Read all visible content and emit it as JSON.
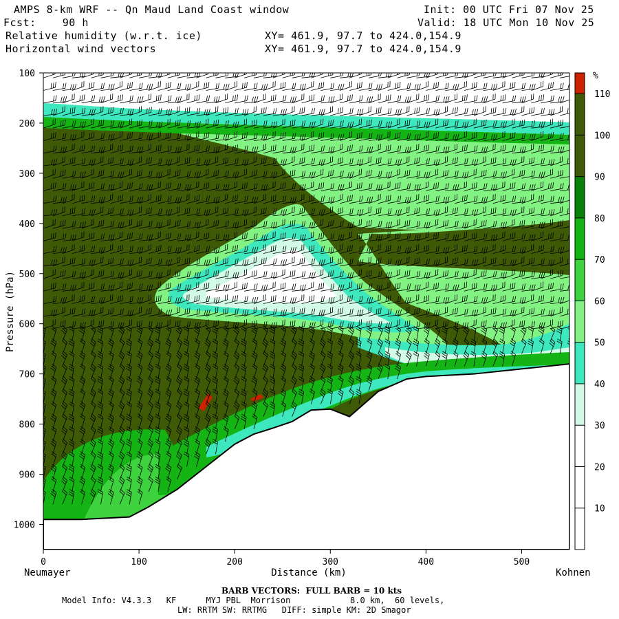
{
  "header": {
    "title": "AMPS 8-km WRF -- Qn Maud Land Coast window",
    "fcst": "Fcst:    90 h",
    "field1": "Relative humidity (w.r.t. ice)",
    "field2": "Horizontal wind vectors",
    "xy1": "XY= 461.9, 97.7 to 424.0,154.9",
    "xy2": "XY= 461.9, 97.7 to 424.0,154.9",
    "init": "Init: 00 UTC Fri 07 Nov 25",
    "valid": "Valid: 18 UTC Mon 10 Nov 25"
  },
  "footer": {
    "barb": "BARB VECTORS:  FULL BARB = 10 kts",
    "model1": "Model Info: V4.3.3   KF      MYJ PBL  Morrison            8.0 km,  60 levels,",
    "model2": "LW: RRTM SW: RRTMG   DIFF: simple KM: 2D Smagor"
  },
  "chart_data": {
    "type": "heatmap",
    "title": "Relative humidity (w.r.t. ice)",
    "xlabel": "Distance (km)",
    "ylabel": "Pressure (hPa)",
    "xlim": [
      0,
      550
    ],
    "ylim": [
      1050,
      100
    ],
    "x_ticks": [
      0,
      100,
      200,
      300,
      400,
      500
    ],
    "y_ticks": [
      100,
      200,
      300,
      400,
      500,
      600,
      700,
      800,
      900,
      1000
    ],
    "x_left_label": "Neumayer",
    "x_right_label": "Kohnen",
    "colorbar": {
      "unit": "%",
      "levels": [
        10,
        20,
        30,
        40,
        50,
        60,
        70,
        80,
        90,
        100,
        110
      ],
      "colors": [
        "#ffffff",
        "#ffffff",
        "#ffffff",
        "#d2fae6",
        "#3ee8be",
        "#82f282",
        "#3ed23e",
        "#14b414",
        "#0a820a",
        "#3f5a06",
        "#3f5a06",
        "#cc2200"
      ]
    },
    "terrain": [
      [
        0,
        990
      ],
      [
        40,
        990
      ],
      [
        90,
        985
      ],
      [
        110,
        965
      ],
      [
        140,
        930
      ],
      [
        170,
        885
      ],
      [
        200,
        840
      ],
      [
        220,
        820
      ],
      [
        240,
        808
      ],
      [
        260,
        795
      ],
      [
        280,
        772
      ],
      [
        300,
        770
      ],
      [
        320,
        785
      ],
      [
        335,
        760
      ],
      [
        350,
        735
      ],
      [
        380,
        710
      ],
      [
        400,
        705
      ],
      [
        450,
        700
      ],
      [
        550,
        680
      ]
    ],
    "regions": [
      {
        "name": "upper-moist-band",
        "rh": 100,
        "p_top": 200,
        "p_bottom": 950
      },
      {
        "name": "dry-tongue",
        "rh": 20,
        "center_x": 240,
        "center_p": 510
      },
      {
        "name": "upper-dry-layer",
        "rh": 20,
        "p_top": 100,
        "p_bottom": 160
      },
      {
        "name": "lower-green-patch",
        "rh": 75,
        "x_range": [
          60,
          230
        ],
        "p_range": [
          850,
          990
        ]
      }
    ]
  }
}
